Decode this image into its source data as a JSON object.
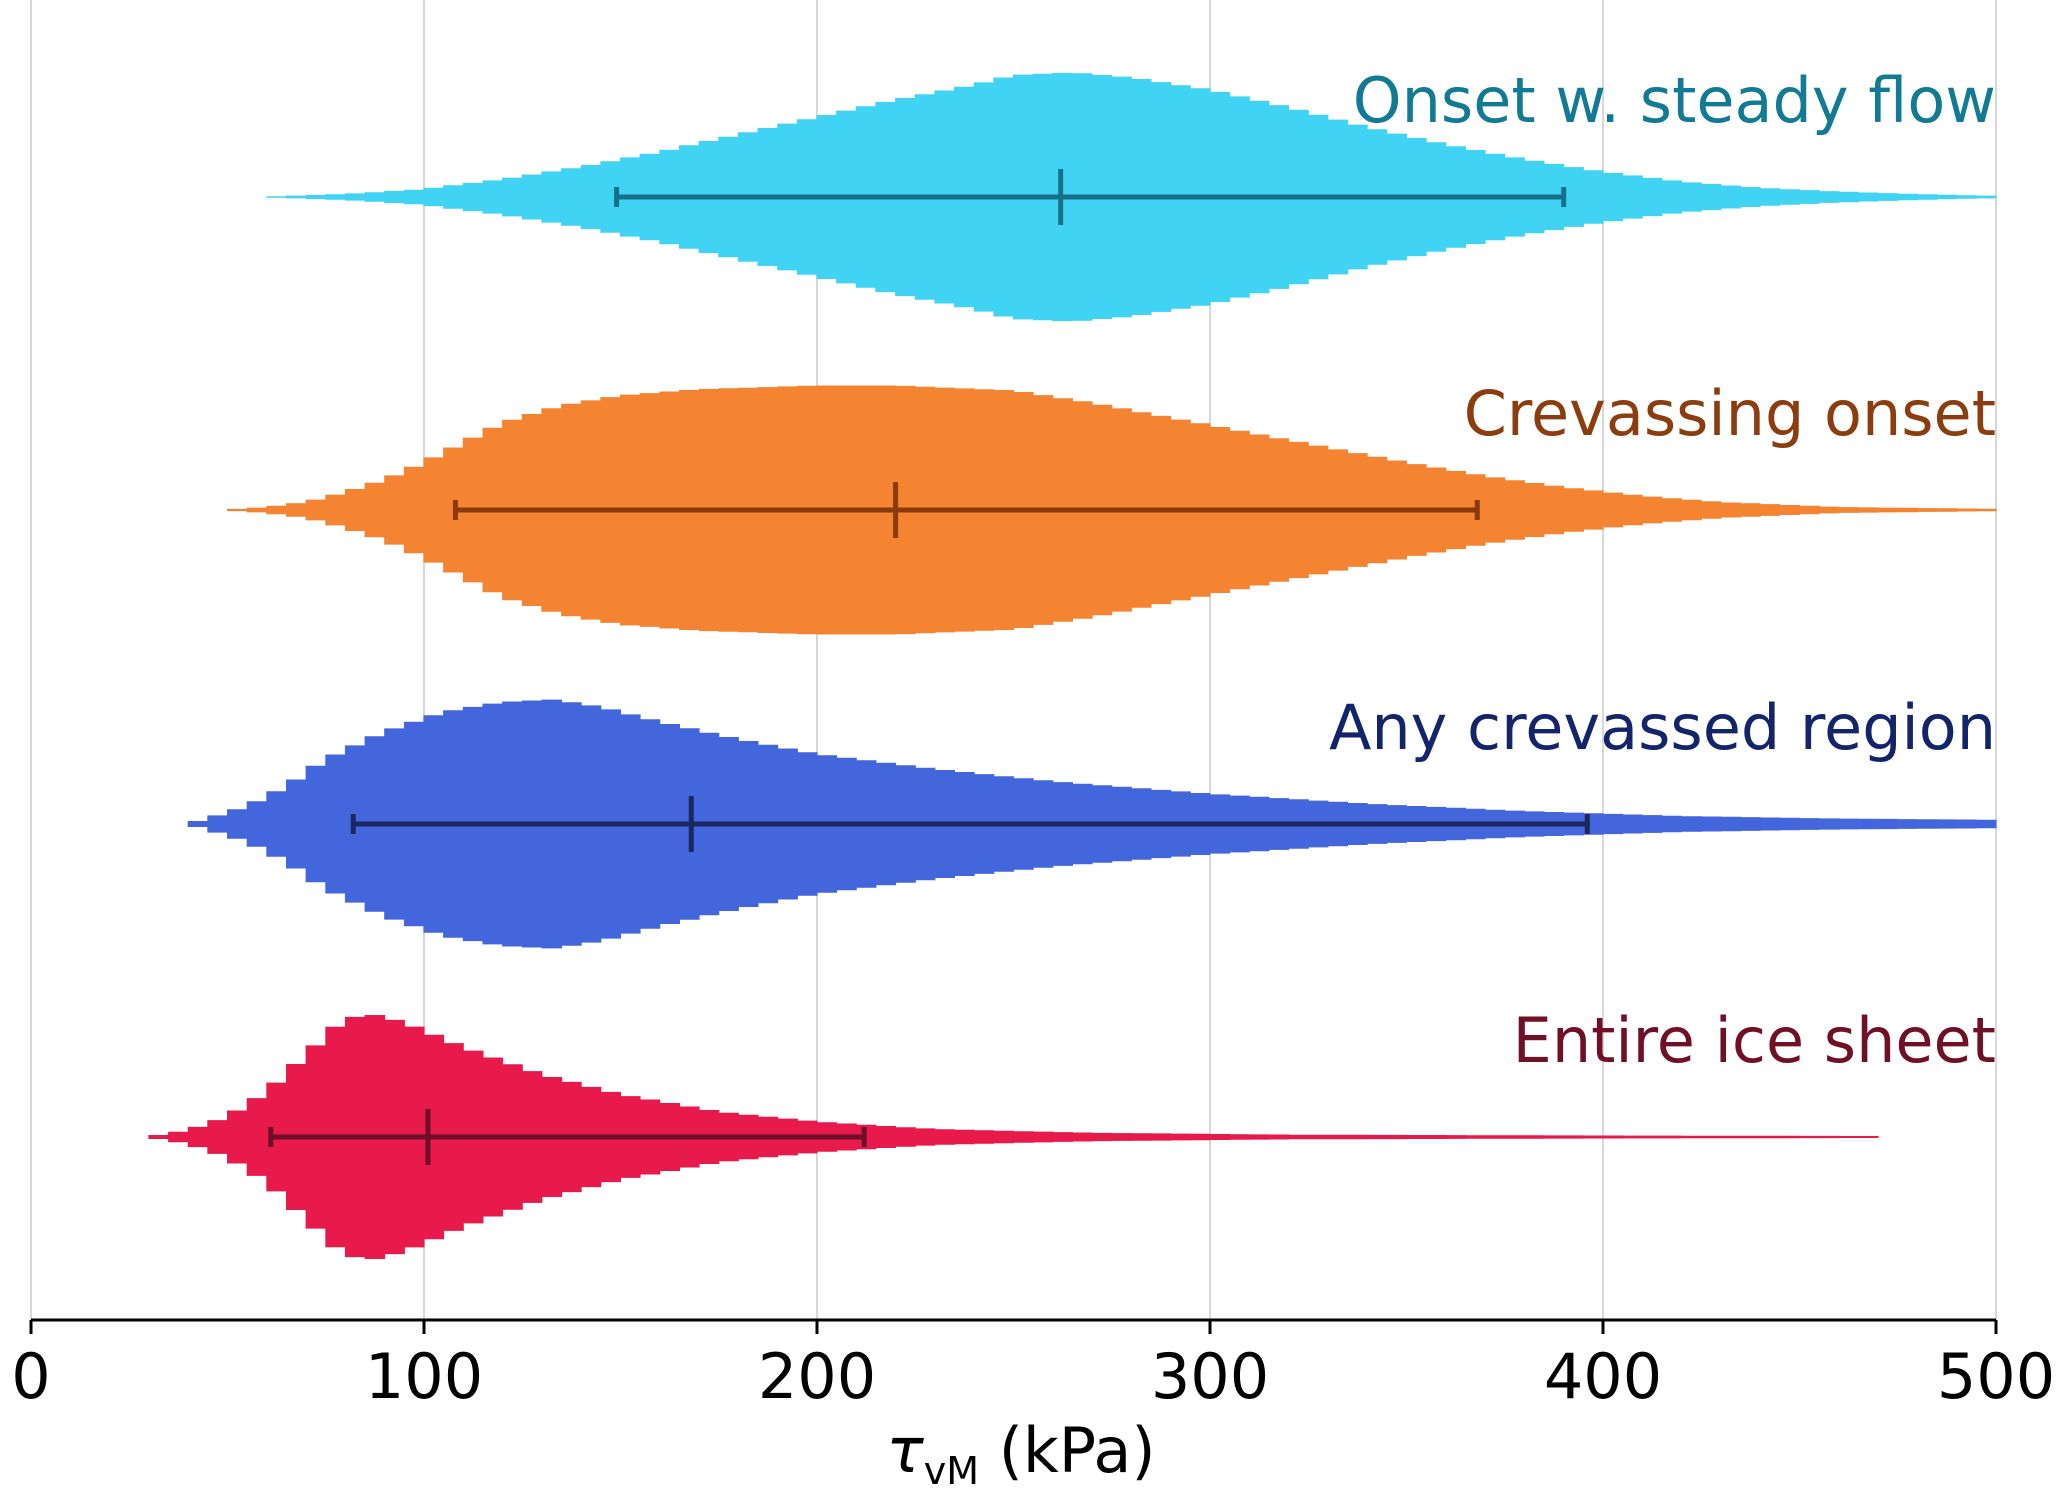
{
  "chart_data": {
    "type": "violin",
    "orientation": "horizontal",
    "xlabel": {
      "symbol": "τ",
      "subscript": "vM",
      "suffix": " (kPa)"
    },
    "xlim": [
      0,
      500
    ],
    "xticks": [
      0,
      100,
      200,
      300,
      400,
      500
    ],
    "grid": "vertical",
    "series": [
      {
        "name": "Onset w. steady flow",
        "fill_color": "#41d3f4",
        "label_color": "#127a94",
        "line_color": "#16708a",
        "min": 60,
        "max": 500,
        "whisker_low": 149,
        "median": 262,
        "whisker_high": 390,
        "density": [
          [
            60,
            0
          ],
          [
            80,
            0.02
          ],
          [
            100,
            0.06
          ],
          [
            120,
            0.14
          ],
          [
            140,
            0.24
          ],
          [
            160,
            0.36
          ],
          [
            180,
            0.5
          ],
          [
            200,
            0.64
          ],
          [
            220,
            0.78
          ],
          [
            240,
            0.9
          ],
          [
            250,
            0.98
          ],
          [
            265,
            1.0
          ],
          [
            280,
            0.96
          ],
          [
            300,
            0.86
          ],
          [
            320,
            0.72
          ],
          [
            340,
            0.56
          ],
          [
            360,
            0.42
          ],
          [
            380,
            0.3
          ],
          [
            400,
            0.2
          ],
          [
            420,
            0.12
          ],
          [
            440,
            0.07
          ],
          [
            460,
            0.04
          ],
          [
            480,
            0.02
          ],
          [
            500,
            0.005
          ]
        ]
      },
      {
        "name": "Crevassing onset",
        "fill_color": "#f48432",
        "label_color": "#8c3d10",
        "line_color": "#8a3a0c",
        "min": 50,
        "max": 500,
        "whisker_low": 108,
        "median": 220,
        "whisker_high": 368,
        "density": [
          [
            50,
            0
          ],
          [
            60,
            0.02
          ],
          [
            70,
            0.06
          ],
          [
            80,
            0.14
          ],
          [
            90,
            0.24
          ],
          [
            100,
            0.38
          ],
          [
            110,
            0.54
          ],
          [
            120,
            0.7
          ],
          [
            135,
            0.84
          ],
          [
            150,
            0.92
          ],
          [
            170,
            0.97
          ],
          [
            200,
            1.0
          ],
          [
            220,
            1.0
          ],
          [
            250,
            0.96
          ],
          [
            270,
            0.86
          ],
          [
            290,
            0.74
          ],
          [
            310,
            0.62
          ],
          [
            330,
            0.5
          ],
          [
            350,
            0.38
          ],
          [
            370,
            0.27
          ],
          [
            390,
            0.18
          ],
          [
            410,
            0.11
          ],
          [
            430,
            0.06
          ],
          [
            460,
            0.02
          ],
          [
            500,
            0.005
          ]
        ]
      },
      {
        "name": "Any crevassed region",
        "fill_color": "#4466dc",
        "label_color": "#14246a",
        "line_color": "#19285e",
        "min": 40,
        "max": 500,
        "whisker_low": 82,
        "median": 168,
        "whisker_high": 396,
        "density": [
          [
            40,
            0
          ],
          [
            45,
            0.04
          ],
          [
            55,
            0.14
          ],
          [
            65,
            0.3
          ],
          [
            75,
            0.52
          ],
          [
            90,
            0.74
          ],
          [
            105,
            0.9
          ],
          [
            120,
            0.98
          ],
          [
            133,
            1.0
          ],
          [
            145,
            0.94
          ],
          [
            160,
            0.82
          ],
          [
            180,
            0.68
          ],
          [
            200,
            0.56
          ],
          [
            230,
            0.44
          ],
          [
            260,
            0.34
          ],
          [
            300,
            0.24
          ],
          [
            340,
            0.16
          ],
          [
            380,
            0.1
          ],
          [
            420,
            0.06
          ],
          [
            460,
            0.04
          ],
          [
            500,
            0.03
          ]
        ]
      },
      {
        "name": "Entire ice sheet",
        "fill_color": "#e8194b",
        "label_color": "#701026",
        "line_color": "#6e0f27",
        "min": 30,
        "max": 470,
        "whisker_low": 61,
        "median": 101,
        "whisker_high": 212,
        "density": [
          [
            30,
            0
          ],
          [
            40,
            0.05
          ],
          [
            50,
            0.16
          ],
          [
            60,
            0.36
          ],
          [
            70,
            0.66
          ],
          [
            78,
            0.9
          ],
          [
            85,
            1.0
          ],
          [
            95,
            0.92
          ],
          [
            110,
            0.72
          ],
          [
            130,
            0.5
          ],
          [
            150,
            0.34
          ],
          [
            175,
            0.2
          ],
          [
            200,
            0.12
          ],
          [
            230,
            0.06
          ],
          [
            270,
            0.03
          ],
          [
            320,
            0.015
          ],
          [
            400,
            0.008
          ],
          [
            470,
            0.004
          ]
        ]
      }
    ]
  }
}
